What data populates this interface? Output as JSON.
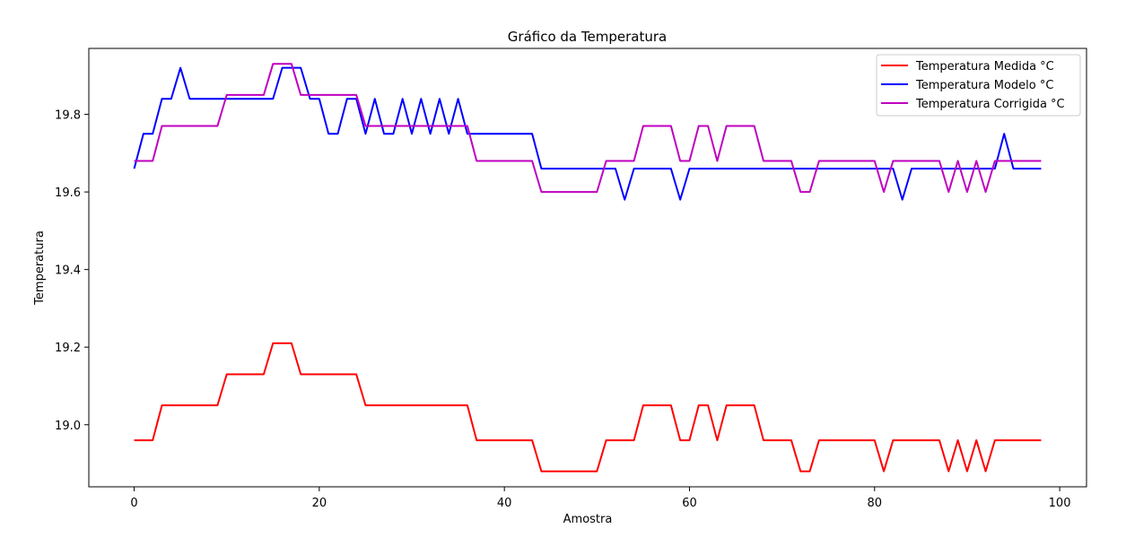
{
  "chart_data": {
    "type": "line",
    "title": "Gráfico da Temperatura",
    "xlabel": "Amostra",
    "ylabel": "Temperatura",
    "xlim": [
      -4.9,
      102.9
    ],
    "ylim": [
      18.84,
      19.97
    ],
    "xticks": [
      0,
      20,
      40,
      60,
      80,
      100
    ],
    "yticks": [
      19.0,
      19.2,
      19.4,
      19.6,
      19.8
    ],
    "ytick_labels": [
      "19.0",
      "19.2",
      "19.4",
      "19.6",
      "19.8"
    ],
    "grid": false,
    "legend_position": "top-right",
    "series": [
      {
        "name": "Temperatura Medida °C",
        "color": "#ff0000",
        "values": [
          18.96,
          18.96,
          18.96,
          19.05,
          19.05,
          19.05,
          19.05,
          19.05,
          19.05,
          19.05,
          19.13,
          19.13,
          19.13,
          19.13,
          19.13,
          19.21,
          19.21,
          19.21,
          19.13,
          19.13,
          19.13,
          19.13,
          19.13,
          19.13,
          19.13,
          19.05,
          19.05,
          19.05,
          19.05,
          19.05,
          19.05,
          19.05,
          19.05,
          19.05,
          19.05,
          19.05,
          19.05,
          18.96,
          18.96,
          18.96,
          18.96,
          18.96,
          18.96,
          18.96,
          18.88,
          18.88,
          18.88,
          18.88,
          18.88,
          18.88,
          18.88,
          18.96,
          18.96,
          18.96,
          18.96,
          19.05,
          19.05,
          19.05,
          19.05,
          18.96,
          18.96,
          19.05,
          19.05,
          18.96,
          19.05,
          19.05,
          19.05,
          19.05,
          18.96,
          18.96,
          18.96,
          18.96,
          18.88,
          18.88,
          18.96,
          18.96,
          18.96,
          18.96,
          18.96,
          18.96,
          18.96,
          18.88,
          18.96,
          18.96,
          18.96,
          18.96,
          18.96,
          18.96,
          18.88,
          18.96,
          18.88,
          18.96,
          18.88,
          18.96,
          18.96,
          18.96,
          18.96,
          18.96,
          18.96
        ]
      },
      {
        "name": "Temperatura Modelo °C",
        "color": "#0000ff",
        "values": [
          19.66,
          19.75,
          19.75,
          19.84,
          19.84,
          19.92,
          19.84,
          19.84,
          19.84,
          19.84,
          19.84,
          19.84,
          19.84,
          19.84,
          19.84,
          19.84,
          19.92,
          19.92,
          19.92,
          19.84,
          19.84,
          19.75,
          19.75,
          19.84,
          19.84,
          19.75,
          19.84,
          19.75,
          19.75,
          19.84,
          19.75,
          19.84,
          19.75,
          19.84,
          19.75,
          19.84,
          19.75,
          19.75,
          19.75,
          19.75,
          19.75,
          19.75,
          19.75,
          19.75,
          19.66,
          19.66,
          19.66,
          19.66,
          19.66,
          19.66,
          19.66,
          19.66,
          19.66,
          19.58,
          19.66,
          19.66,
          19.66,
          19.66,
          19.66,
          19.58,
          19.66,
          19.66,
          19.66,
          19.66,
          19.66,
          19.66,
          19.66,
          19.66,
          19.66,
          19.66,
          19.66,
          19.66,
          19.66,
          19.66,
          19.66,
          19.66,
          19.66,
          19.66,
          19.66,
          19.66,
          19.66,
          19.66,
          19.66,
          19.58,
          19.66,
          19.66,
          19.66,
          19.66,
          19.66,
          19.66,
          19.66,
          19.66,
          19.66,
          19.66,
          19.75,
          19.66,
          19.66,
          19.66,
          19.66
        ]
      },
      {
        "name": "Temperatura Corrigida °C",
        "color": "#bf00bf",
        "values": [
          19.68,
          19.68,
          19.68,
          19.77,
          19.77,
          19.77,
          19.77,
          19.77,
          19.77,
          19.77,
          19.85,
          19.85,
          19.85,
          19.85,
          19.85,
          19.93,
          19.93,
          19.93,
          19.85,
          19.85,
          19.85,
          19.85,
          19.85,
          19.85,
          19.85,
          19.77,
          19.77,
          19.77,
          19.77,
          19.77,
          19.77,
          19.77,
          19.77,
          19.77,
          19.77,
          19.77,
          19.77,
          19.68,
          19.68,
          19.68,
          19.68,
          19.68,
          19.68,
          19.68,
          19.6,
          19.6,
          19.6,
          19.6,
          19.6,
          19.6,
          19.6,
          19.68,
          19.68,
          19.68,
          19.68,
          19.77,
          19.77,
          19.77,
          19.77,
          19.68,
          19.68,
          19.77,
          19.77,
          19.68,
          19.77,
          19.77,
          19.77,
          19.77,
          19.68,
          19.68,
          19.68,
          19.68,
          19.6,
          19.6,
          19.68,
          19.68,
          19.68,
          19.68,
          19.68,
          19.68,
          19.68,
          19.6,
          19.68,
          19.68,
          19.68,
          19.68,
          19.68,
          19.68,
          19.6,
          19.68,
          19.6,
          19.68,
          19.6,
          19.68,
          19.68,
          19.68,
          19.68,
          19.68,
          19.68
        ]
      }
    ]
  }
}
